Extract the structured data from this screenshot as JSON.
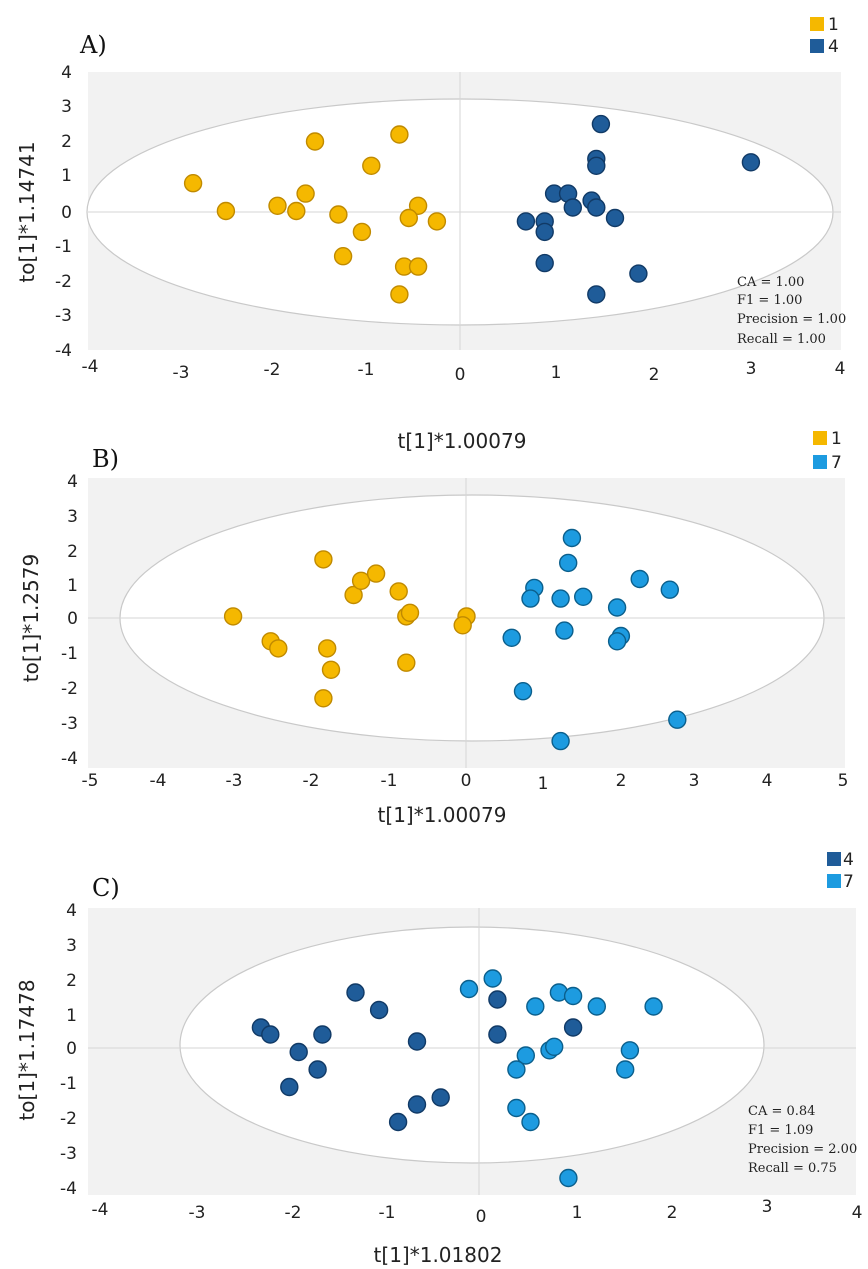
{
  "chart_data": [
    {
      "type": "scatter",
      "panel_label": "A)",
      "xlabel": "t[1]*1.00079",
      "ylabel": "to[1]*1.14741",
      "xlim": [
        -4,
        4
      ],
      "ylim": [
        -4,
        4
      ],
      "xticks": [
        "-4",
        "-3",
        "-2",
        "-1",
        "0",
        "1",
        "2",
        "3",
        "4"
      ],
      "yticks": [
        "4",
        "3",
        "2",
        "1",
        "0",
        "-1",
        "-2",
        "-3",
        "-4"
      ],
      "legend_position": "top-right",
      "series": [
        {
          "name": "1",
          "color": "#f5b800",
          "stroke": "#c08a00",
          "x": [
            -2.9,
            -2.55,
            -2.0,
            -1.7,
            -1.6,
            -1.8,
            -1.35,
            -1.1,
            -1.3,
            -1.0,
            -0.7,
            -0.5,
            -0.6,
            -0.65,
            -0.5,
            -0.3,
            -0.7
          ],
          "y": [
            0.8,
            0.0,
            0.15,
            0.5,
            2.0,
            0.0,
            -0.1,
            -0.6,
            -1.3,
            1.3,
            2.2,
            0.15,
            -0.2,
            -1.6,
            -1.6,
            -0.3,
            -2.4
          ]
        },
        {
          "name": "4",
          "color": "#1f5c99",
          "stroke": "#113a66",
          "x": [
            1.45,
            1.4,
            1.4,
            0.95,
            1.1,
            1.35,
            1.4,
            1.15,
            0.65,
            0.85,
            0.85,
            0.85,
            1.6,
            1.85,
            1.4,
            3.05
          ],
          "y": [
            2.5,
            1.5,
            1.3,
            0.5,
            0.5,
            0.3,
            0.1,
            0.1,
            -0.3,
            -0.3,
            -0.6,
            -1.5,
            -0.2,
            -1.8,
            -2.4,
            1.4
          ]
        }
      ],
      "metrics": [
        "CA = 1.00",
        "F1 = 1.00",
        "Precision = 1.00",
        "Recall = 1.00"
      ]
    },
    {
      "type": "scatter",
      "panel_label": "B)",
      "title_above": "t[1]*1.00079",
      "xlabel": "t[1]*1.00079",
      "ylabel": "to[1]*1.2579",
      "xlim": [
        -5,
        5
      ],
      "ylim": [
        -4,
        4
      ],
      "xticks": [
        "-5",
        "-4",
        "-3",
        "-2",
        "-1",
        "0",
        "1",
        "2",
        "3",
        "4",
        "5"
      ],
      "yticks": [
        "4",
        "3",
        "2",
        "1",
        "0",
        "-1",
        "-2",
        "-3",
        "-4"
      ],
      "legend_position": "top-right",
      "series": [
        {
          "name": "1",
          "color": "#f5b800",
          "stroke": "#c08a00",
          "x": [
            -3.1,
            -2.6,
            -2.5,
            -1.9,
            -1.85,
            -1.8,
            -1.9,
            -1.5,
            -1.4,
            -1.2,
            -0.9,
            -0.8,
            -0.75,
            -0.8,
            0.0,
            -0.05
          ],
          "y": [
            0.2,
            -0.5,
            -0.7,
            1.8,
            -0.7,
            -1.3,
            -2.1,
            0.8,
            1.2,
            1.4,
            0.9,
            0.2,
            0.3,
            -1.1,
            0.2,
            -0.05
          ]
        },
        {
          "name": "7",
          "color": "#1d9be0",
          "stroke": "#0b5f8c",
          "x": [
            1.4,
            1.35,
            0.9,
            0.85,
            1.25,
            1.55,
            0.6,
            1.3,
            2.3,
            2.7,
            2.0,
            2.05,
            2.0,
            0.75,
            1.25,
            2.8
          ],
          "y": [
            2.4,
            1.7,
            1.0,
            0.7,
            0.7,
            0.75,
            -0.4,
            -0.2,
            1.25,
            0.95,
            0.45,
            -0.35,
            -0.5,
            -1.9,
            -3.3,
            -2.7
          ]
        }
      ]
    },
    {
      "type": "scatter",
      "panel_label": "C)",
      "xlabel": "t[1]*1.01802",
      "ylabel": "to[1]*1.17478",
      "xlim": [
        -4,
        4
      ],
      "ylim": [
        -4,
        4
      ],
      "xticks": [
        "-4",
        "-3",
        "-2",
        "-1",
        "0",
        "1",
        "2",
        "3",
        "4"
      ],
      "yticks": [
        "4",
        "3",
        "2",
        "1",
        "0",
        "-1",
        "-2",
        "-3",
        "-4"
      ],
      "legend_position": "top-right",
      "series": [
        {
          "name": "4",
          "color": "#1f5c99",
          "stroke": "#113a66",
          "x": [
            -2.3,
            -2.2,
            -1.9,
            -1.65,
            -1.7,
            -2.0,
            -1.3,
            -1.05,
            -0.65,
            -0.65,
            -0.85,
            -0.4,
            0.2,
            0.2,
            1.0
          ],
          "y": [
            0.7,
            0.5,
            0.0,
            0.5,
            -0.5,
            -1.0,
            1.7,
            1.2,
            0.3,
            -1.5,
            -2.0,
            -1.3,
            1.5,
            0.5,
            0.7
          ]
        },
        {
          "name": "7",
          "color": "#1d9be0",
          "stroke": "#0b5f8c",
          "x": [
            -0.1,
            0.15,
            0.6,
            0.85,
            1.0,
            1.25,
            1.85,
            0.5,
            0.75,
            0.8,
            0.4,
            0.4,
            0.55,
            1.6,
            1.55,
            0.95
          ],
          "y": [
            1.8,
            2.1,
            1.3,
            1.7,
            1.6,
            1.3,
            1.3,
            -0.1,
            0.05,
            0.15,
            -0.5,
            -1.6,
            -2.0,
            0.05,
            -0.5,
            -3.6
          ]
        }
      ],
      "metrics": [
        "CA = 0.84",
        "F1 = 1.09",
        "Precision = 2.00",
        "Recall = 0.75"
      ]
    }
  ]
}
